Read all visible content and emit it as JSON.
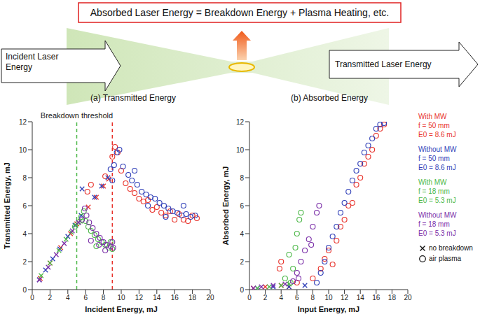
{
  "diagram": {
    "title": "Absorbed Laser Energy = Breakdown Energy + Plasma Heating, etc.",
    "left_arrow": "Incident Laser Energy",
    "right_arrow": "Transmitted Laser Energy",
    "panel_labels": [
      "(a) Transmitted Energy",
      "(b) Absorbed Energy"
    ]
  },
  "legend_entries": [
    {
      "name": "With MW\nf = 50 mm\nE0 = 8.6 mJ",
      "color": "#e8322b"
    },
    {
      "name": "Without MW\nf = 50 mm\nE0 = 8.6 mJ",
      "color": "#2f3fb8"
    },
    {
      "name": "With MW\nf = 18 mm\nE0 = 5.3 mJ",
      "color": "#4cb848"
    },
    {
      "name": "Without MW\nf = 18 mm\nE0 = 5.3 mJ",
      "color": "#7b2fa8"
    }
  ],
  "markers": [
    {
      "marker": "x",
      "label": "no breakdown"
    },
    {
      "marker": "circle",
      "label": "air plasma"
    }
  ],
  "chart_data": [
    {
      "type": "scatter",
      "x_label": "Incident Energy, mJ",
      "y_label": "Transmitted Energy, mJ",
      "xlim": [
        0,
        20
      ],
      "xticks": [
        0,
        2,
        4,
        6,
        8,
        10,
        12,
        14,
        16,
        18,
        20
      ],
      "ylim": [
        0,
        12
      ],
      "yticks": [
        0,
        2,
        4,
        6,
        8,
        10,
        12
      ],
      "reference_lines": [
        {
          "x": 5,
          "color": "#4cb848",
          "line_style": "dashed",
          "label": "Breakdown threshold"
        },
        {
          "x": 9,
          "color": "#e8322b",
          "line_style": "dashed"
        }
      ],
      "series": [
        {
          "color": "#e8322b",
          "groups": [
            {
              "x": [
                0.9,
                2.0,
                3.2,
                4.3,
                5.0,
                6.3,
                7.2,
                8.0,
                8.6
              ],
              "values": [
                0.8,
                1.9,
                3.0,
                4.0,
                4.7,
                5.9,
                6.6,
                7.4,
                7.9
              ]
            },
            {
              "x": [
                6.2,
                6.6,
                8.2,
                9.0,
                9.3,
                9.6,
                10.0,
                10.5,
                11.0,
                11.5,
                12.0,
                12.5,
                13.0,
                13.5,
                14.0,
                14.5,
                15.0,
                15.5,
                16.0,
                16.5,
                17.0,
                17.5,
                18.0,
                18.5
              ],
              "values": [
                7.0,
                7.5,
                8.1,
                9.5,
                10.2,
                9.8,
                8.5,
                7.6,
                7.2,
                6.9,
                6.5,
                6.3,
                6.4,
                5.7,
                5.9,
                5.5,
                5.3,
                5.6,
                5.0,
                5.4,
                5.0,
                4.9,
                5.3,
                5.1
              ]
            }
          ]
        },
        {
          "color": "#2f3fb8",
          "groups": [
            {
              "x": [
                0.8,
                1.5,
                2.3,
                3.1,
                4.0,
                4.8,
                5.5,
                5.6,
                7.0,
                7.8,
                8.5
              ],
              "values": [
                0.7,
                1.4,
                2.2,
                2.9,
                3.8,
                4.6,
                5.3,
                7.2,
                6.6,
                7.4,
                8.0
              ]
            },
            {
              "x": [
                8.8,
                9.2,
                9.5,
                9.8,
                10.2,
                10.8,
                11.2,
                11.8,
                12.3,
                12.8,
                13.3,
                13.8,
                14.3,
                14.8,
                15.3,
                15.8,
                16.3,
                16.8,
                17.3,
                17.8,
                18.3,
                9.0,
                11.5,
                13.0,
                15.0,
                17.0
              ],
              "values": [
                8.6,
                8.9,
                9.8,
                10.0,
                8.8,
                8.2,
                7.8,
                7.5,
                7.0,
                6.8,
                6.6,
                6.5,
                6.2,
                6.0,
                5.8,
                5.6,
                5.5,
                5.3,
                5.4,
                5.2,
                5.3,
                7.8,
                8.5,
                6.0,
                5.2,
                6.0
              ]
            }
          ]
        },
        {
          "color": "#4cb848",
          "groups": [
            {
              "x": [
                1.0,
                2.0,
                3.0,
                3.8,
                4.4,
                4.9,
                5.4
              ],
              "values": [
                1.0,
                1.9,
                2.8,
                3.6,
                4.1,
                4.6,
                4.9
              ]
            },
            {
              "x": [
                4.8,
                5.2,
                5.5,
                5.8,
                6.0,
                6.3,
                6.6,
                7.0,
                7.4,
                7.8,
                8.2,
                8.6,
                9.0,
                8.8,
                7.2
              ],
              "values": [
                4.5,
                4.8,
                5.2,
                5.6,
                4.9,
                4.5,
                4.2,
                3.9,
                3.6,
                3.4,
                3.2,
                3.0,
                2.9,
                3.4,
                3.1
              ]
            }
          ]
        },
        {
          "color": "#7b2fa8",
          "groups": [
            {
              "x": [
                0.8,
                1.8,
                2.7,
                3.6,
                4.5,
                5.2
              ],
              "values": [
                0.7,
                1.6,
                2.5,
                3.3,
                4.2,
                4.8
              ]
            },
            {
              "x": [
                5.6,
                5.9,
                6.1,
                6.4,
                6.8,
                7.2,
                7.6,
                8.0,
                8.4,
                8.8,
                9.1,
                6.6,
                7.5,
                8.2,
                9.0
              ],
              "values": [
                5.0,
                5.8,
                5.3,
                4.8,
                4.4,
                4.0,
                3.7,
                3.4,
                3.2,
                3.1,
                3.0,
                3.5,
                3.2,
                2.8,
                3.4
              ]
            }
          ]
        }
      ]
    },
    {
      "type": "scatter",
      "x_label": "Input Energy, mJ",
      "y_label": "Absorbed Energy, mJ",
      "xlim": [
        0,
        20
      ],
      "xticks": [
        0,
        2,
        4,
        6,
        8,
        10,
        12,
        14,
        16,
        18,
        20
      ],
      "ylim": [
        0,
        12
      ],
      "yticks": [
        0,
        2,
        4,
        6,
        8,
        10,
        12
      ],
      "series": [
        {
          "color": "#e8322b",
          "groups": [
            {
              "x": [
                0.5,
                2.0,
                4.0,
                5.0
              ],
              "values": [
                0.1,
                0.2,
                0.3,
                0.2
              ]
            },
            {
              "x": [
                3.8,
                4.0,
                6.0,
                8.0,
                9.0,
                9.5,
                10.0,
                10.5,
                11.0,
                11.5,
                12.0,
                12.5,
                13.0,
                13.5,
                14.0,
                14.5,
                15.0,
                15.5,
                16.0,
                16.5,
                17.0
              ],
              "values": [
                1.5,
                2.0,
                0.5,
                0.8,
                1.5,
                2.2,
                2.8,
                1.8,
                3.5,
                4.5,
                5.0,
                6.0,
                6.2,
                7.5,
                8.0,
                9.0,
                9.5,
                10.0,
                11.0,
                11.5,
                11.8
              ]
            }
          ]
        },
        {
          "color": "#2f3fb8",
          "groups": [
            {
              "x": [
                1.0,
                3.0,
                5.0,
                7.0
              ],
              "values": [
                0.1,
                0.2,
                0.2,
                0.3
              ]
            },
            {
              "x": [
                8.5,
                9.0,
                9.5,
                10.0,
                10.5,
                11.0,
                11.5,
                12.0,
                12.5,
                13.0,
                13.5,
                14.0,
                14.5,
                15.0,
                15.5,
                16.0,
                16.5,
                17.0
              ],
              "values": [
                0.5,
                1.2,
                2.0,
                3.0,
                3.8,
                4.5,
                5.5,
                6.2,
                7.0,
                7.8,
                8.5,
                9.0,
                9.8,
                10.3,
                10.8,
                11.5,
                11.8,
                11.9
              ]
            }
          ]
        },
        {
          "color": "#4cb848",
          "groups": [
            {
              "x": [
                1.0,
                2.5,
                4.0,
                5.0
              ],
              "values": [
                0.1,
                0.2,
                0.3,
                0.4
              ]
            },
            {
              "x": [
                5.2,
                5.5,
                5.8,
                6.0,
                6.3,
                6.5,
                5.0,
                4.5
              ],
              "values": [
                0.5,
                1.5,
                3.0,
                4.0,
                5.0,
                5.5,
                2.5,
                0.8
              ]
            }
          ]
        },
        {
          "color": "#7b2fa8",
          "groups": [
            {
              "x": [
                0.5,
                1.5,
                3.0,
                4.5
              ],
              "values": [
                0.1,
                0.2,
                0.3,
                0.4
              ]
            },
            {
              "x": [
                5.5,
                6.0,
                6.5,
                7.0,
                7.5,
                8.0,
                8.5,
                8.8,
                6.2,
                7.8
              ],
              "values": [
                0.6,
                1.2,
                2.0,
                2.8,
                3.6,
                4.5,
                5.5,
                6.0,
                0.8,
                3.2
              ]
            }
          ]
        }
      ]
    }
  ]
}
